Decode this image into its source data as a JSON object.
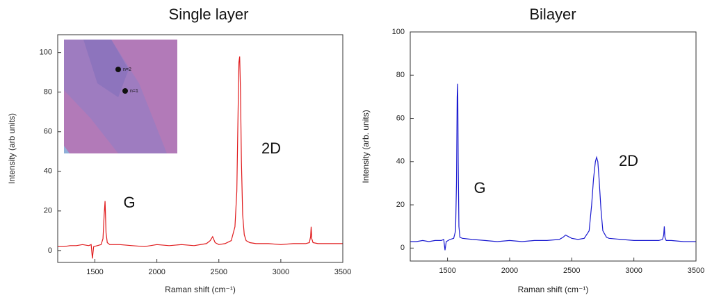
{
  "chart_data": [
    {
      "type": "line",
      "title": "Single layer",
      "x_label": "Raman shift (cm⁻¹)",
      "y_label": "Intensity (arb units)",
      "x": [
        1200,
        1250,
        1300,
        1350,
        1400,
        1450,
        1470,
        1480,
        1490,
        1520,
        1550,
        1565,
        1575,
        1582,
        1590,
        1600,
        1620,
        1700,
        1800,
        1900,
        2000,
        2100,
        2200,
        2300,
        2400,
        2430,
        2450,
        2470,
        2500,
        2550,
        2600,
        2630,
        2645,
        2655,
        2662,
        2668,
        2675,
        2682,
        2692,
        2705,
        2720,
        2750,
        2800,
        2900,
        3000,
        3100,
        3200,
        3230,
        3240,
        3245,
        3250,
        3260,
        3300,
        3400,
        3500
      ],
      "series": [
        {
          "color": "#e0191b",
          "values": [
            2,
            2,
            2.5,
            2.5,
            3,
            2.5,
            3,
            -4,
            2,
            2.5,
            3,
            6,
            18,
            25,
            9,
            4,
            3,
            3,
            2.5,
            2,
            3,
            2.5,
            3,
            2.5,
            3.5,
            5,
            7,
            4,
            3,
            3.5,
            5,
            12,
            30,
            70,
            95,
            98,
            80,
            45,
            18,
            8,
            5,
            4,
            3.5,
            3.5,
            3,
            3.5,
            3.5,
            4,
            7,
            12,
            6,
            4,
            3.5,
            3.5,
            3.5
          ]
        }
      ],
      "xlim": [
        1200,
        3500
      ],
      "xticks": [
        1500,
        2000,
        2500,
        3000,
        3500
      ],
      "ylim": [
        -6,
        109
      ],
      "yticks": [
        0,
        20,
        40,
        60,
        80,
        100
      ],
      "annotations": [
        "G",
        "2D"
      ],
      "inset_labels": [
        "n=2",
        "n=1"
      ]
    },
    {
      "type": "line",
      "title": "Bilayer",
      "x_label": "Raman shift (cm⁻¹)",
      "y_label": "Intensity (arb. units)",
      "x": [
        1200,
        1250,
        1300,
        1350,
        1400,
        1450,
        1470,
        1480,
        1490,
        1520,
        1550,
        1565,
        1572,
        1578,
        1582,
        1586,
        1592,
        1600,
        1620,
        1700,
        1800,
        1900,
        2000,
        2100,
        2200,
        2300,
        2400,
        2430,
        2450,
        2500,
        2550,
        2600,
        2640,
        2660,
        2675,
        2690,
        2700,
        2710,
        2720,
        2735,
        2750,
        2780,
        2800,
        2900,
        3000,
        3100,
        3200,
        3230,
        3240,
        3245,
        3250,
        3260,
        3300,
        3400,
        3500
      ],
      "series": [
        {
          "color": "#1a1ad0",
          "values": [
            3,
            3,
            3.5,
            3,
            3.5,
            3.5,
            4,
            -1,
            3,
            4,
            4.5,
            8,
            30,
            70,
            76,
            40,
            10,
            5,
            4.5,
            4,
            3.5,
            3,
            3.5,
            3,
            3.5,
            3.5,
            4,
            5,
            6,
            4.5,
            4,
            4.5,
            8,
            20,
            32,
            40,
            42,
            40,
            32,
            18,
            8,
            5,
            4.5,
            4,
            3.5,
            3.5,
            3.5,
            4,
            6,
            10,
            5,
            3.5,
            3.5,
            3,
            3
          ]
        }
      ],
      "xlim": [
        1200,
        3500
      ],
      "xticks": [
        1500,
        2000,
        2500,
        3000,
        3500
      ],
      "ylim": [
        -6,
        100
      ],
      "yticks": [
        0,
        20,
        40,
        60,
        80,
        100
      ],
      "annotations": [
        "G",
        "2D"
      ]
    }
  ]
}
